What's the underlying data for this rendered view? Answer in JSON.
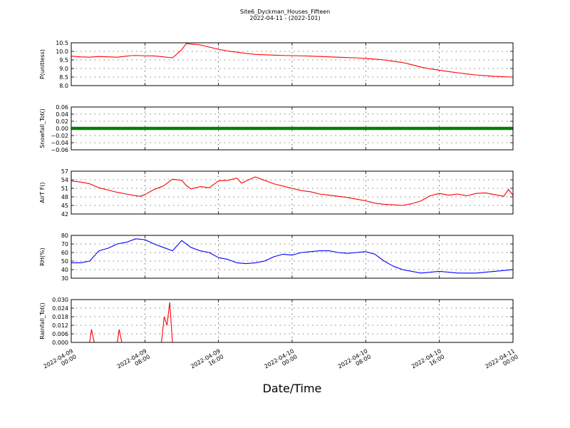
{
  "chart_data": {
    "type": "line",
    "title": "Site6_Dyckman_Houses_Fifteen",
    "subtitle": "2022-04-11 - (2022-101)",
    "xlabel": "Date/Time",
    "x_ticks": [
      {
        "line1": "2022-04-09",
        "line2": "00:00"
      },
      {
        "line1": "2022-04-09",
        "line2": "08:00"
      },
      {
        "line1": "2022-04-09",
        "line2": "16:00"
      },
      {
        "line1": "2022-04-10",
        "line2": "00:00"
      },
      {
        "line1": "2022-04-10",
        "line2": "08:00"
      },
      {
        "line1": "2022-04-10",
        "line2": "16:00"
      },
      {
        "line1": "2022-04-11",
        "line2": "00:00"
      }
    ],
    "x_range_hours": [
      0,
      48
    ],
    "grid": true,
    "panels": [
      {
        "ylabel": "P(unitless)",
        "ylim": [
          8.0,
          10.5
        ],
        "yticks": [
          "8.0",
          "8.5",
          "9.0",
          "9.5",
          "10.0",
          "10.5"
        ],
        "ytick_values": [
          8.0,
          8.5,
          9.0,
          9.5,
          10.0,
          10.5
        ],
        "color": "#ff0000",
        "marker": false,
        "points": [
          [
            0,
            9.72
          ],
          [
            1,
            9.68
          ],
          [
            2,
            9.66
          ],
          [
            3,
            9.7
          ],
          [
            4,
            9.68
          ],
          [
            5,
            9.66
          ],
          [
            6,
            9.72
          ],
          [
            6.5,
            9.75
          ],
          [
            7,
            9.76
          ],
          [
            8,
            9.74
          ],
          [
            9,
            9.73
          ],
          [
            10,
            9.68
          ],
          [
            11,
            9.62
          ],
          [
            12,
            10.1
          ],
          [
            12.5,
            10.45
          ],
          [
            13,
            10.43
          ],
          [
            14,
            10.38
          ],
          [
            15,
            10.25
          ],
          [
            16,
            10.12
          ],
          [
            17,
            10.02
          ],
          [
            18,
            9.95
          ],
          [
            19,
            9.88
          ],
          [
            20,
            9.82
          ],
          [
            21,
            9.8
          ],
          [
            22,
            9.78
          ],
          [
            23,
            9.76
          ],
          [
            24,
            9.75
          ],
          [
            25,
            9.74
          ],
          [
            26,
            9.72
          ],
          [
            27,
            9.7
          ],
          [
            28,
            9.68
          ],
          [
            29,
            9.66
          ],
          [
            30,
            9.64
          ],
          [
            31,
            9.62
          ],
          [
            32,
            9.58
          ],
          [
            33,
            9.55
          ],
          [
            34,
            9.5
          ],
          [
            35,
            9.42
          ],
          [
            36,
            9.35
          ],
          [
            37,
            9.22
          ],
          [
            38,
            9.08
          ],
          [
            39,
            8.98
          ],
          [
            40,
            8.9
          ],
          [
            41,
            8.82
          ],
          [
            42,
            8.75
          ],
          [
            43,
            8.68
          ],
          [
            44,
            8.62
          ],
          [
            45,
            8.58
          ],
          [
            46,
            8.54
          ],
          [
            47,
            8.52
          ],
          [
            48,
            8.5
          ]
        ]
      },
      {
        "ylabel": "Snowfall_Tot()",
        "ylim": [
          -0.06,
          0.06
        ],
        "yticks": [
          "−0.06",
          "−0.04",
          "−0.02",
          "0.00",
          "0.02",
          "0.04",
          "0.06"
        ],
        "ytick_values": [
          -0.06,
          -0.04,
          -0.02,
          0.0,
          0.02,
          0.04,
          0.06
        ],
        "color": "#008000",
        "marker": true,
        "constant_value": 0.0
      },
      {
        "ylabel": "AirT F()",
        "ylim": [
          42,
          57
        ],
        "yticks": [
          "42",
          "45",
          "48",
          "51",
          "54",
          "57"
        ],
        "ytick_values": [
          42,
          45,
          48,
          51,
          54,
          57
        ],
        "color": "#ff0000",
        "marker": false,
        "points": [
          [
            0,
            53.6
          ],
          [
            1,
            53.2
          ],
          [
            2,
            52.6
          ],
          [
            3,
            51.2
          ],
          [
            4,
            50.4
          ],
          [
            5,
            49.6
          ],
          [
            6,
            49.0
          ],
          [
            7,
            48.4
          ],
          [
            7.5,
            48.2
          ],
          [
            8,
            48.8
          ],
          [
            9,
            50.6
          ],
          [
            10,
            51.8
          ],
          [
            11,
            54.2
          ],
          [
            12,
            53.8
          ],
          [
            12.5,
            52.0
          ],
          [
            13,
            50.8
          ],
          [
            14,
            51.6
          ],
          [
            15,
            51.2
          ],
          [
            16,
            53.6
          ],
          [
            17,
            53.8
          ],
          [
            18,
            54.6
          ],
          [
            18.5,
            52.8
          ],
          [
            19,
            53.6
          ],
          [
            20,
            55.0
          ],
          [
            21,
            53.8
          ],
          [
            22,
            52.6
          ],
          [
            23,
            51.8
          ],
          [
            24,
            51.0
          ],
          [
            25,
            50.2
          ],
          [
            26,
            49.8
          ],
          [
            27,
            49.0
          ],
          [
            28,
            48.6
          ],
          [
            29,
            48.2
          ],
          [
            30,
            47.8
          ],
          [
            31,
            47.2
          ],
          [
            32,
            46.6
          ],
          [
            33,
            45.8
          ],
          [
            34,
            45.4
          ],
          [
            35,
            45.2
          ],
          [
            36,
            45.0
          ],
          [
            37,
            45.6
          ],
          [
            38,
            46.6
          ],
          [
            39,
            48.4
          ],
          [
            40,
            49.2
          ],
          [
            41,
            48.6
          ],
          [
            42,
            49.0
          ],
          [
            43,
            48.4
          ],
          [
            44,
            49.2
          ],
          [
            45,
            49.4
          ],
          [
            46,
            48.8
          ],
          [
            47,
            48.2
          ],
          [
            47.5,
            50.6
          ],
          [
            48,
            48.6
          ]
        ]
      },
      {
        "ylabel": "RH(%)",
        "ylim": [
          30,
          80
        ],
        "yticks": [
          "30",
          "40",
          "50",
          "60",
          "70",
          "80"
        ],
        "ytick_values": [
          30,
          40,
          50,
          60,
          70,
          80
        ],
        "color": "#0000ff",
        "marker": false,
        "points": [
          [
            0,
            48
          ],
          [
            1,
            48
          ],
          [
            2,
            50
          ],
          [
            3,
            62
          ],
          [
            4,
            65
          ],
          [
            5,
            70
          ],
          [
            6,
            72
          ],
          [
            7,
            76
          ],
          [
            8,
            75
          ],
          [
            9,
            70
          ],
          [
            10,
            66
          ],
          [
            11,
            62
          ],
          [
            12,
            74
          ],
          [
            13,
            66
          ],
          [
            14,
            62
          ],
          [
            15,
            60
          ],
          [
            16,
            54
          ],
          [
            17,
            52
          ],
          [
            18,
            48
          ],
          [
            19,
            47
          ],
          [
            20,
            48
          ],
          [
            21,
            50
          ],
          [
            22,
            55
          ],
          [
            23,
            58
          ],
          [
            24,
            57
          ],
          [
            25,
            60
          ],
          [
            26,
            61
          ],
          [
            27,
            62
          ],
          [
            28,
            62
          ],
          [
            29,
            60
          ],
          [
            30,
            59
          ],
          [
            31,
            60
          ],
          [
            32,
            61
          ],
          [
            33,
            58
          ],
          [
            34,
            50
          ],
          [
            35,
            44
          ],
          [
            36,
            40
          ],
          [
            37,
            38
          ],
          [
            38,
            36
          ],
          [
            39,
            37
          ],
          [
            40,
            38
          ],
          [
            41,
            37
          ],
          [
            42,
            36
          ],
          [
            43,
            36
          ],
          [
            44,
            36
          ],
          [
            45,
            37
          ],
          [
            46,
            38
          ],
          [
            47,
            39
          ],
          [
            48,
            40
          ]
        ]
      },
      {
        "ylabel": "Rainfall_Tot()",
        "ylim": [
          0.0,
          0.03
        ],
        "yticks": [
          "0.000",
          "0.006",
          "0.012",
          "0.018",
          "0.024",
          "0.030"
        ],
        "ytick_values": [
          0.0,
          0.006,
          0.012,
          0.018,
          0.024,
          0.03
        ],
        "color": "#ff0000",
        "marker": false,
        "points": [
          [
            0,
            0
          ],
          [
            2.0,
            0
          ],
          [
            2.2,
            0.009
          ],
          [
            2.5,
            0
          ],
          [
            5.0,
            0
          ],
          [
            5.2,
            0.009
          ],
          [
            5.5,
            0
          ],
          [
            9.8,
            0
          ],
          [
            10.1,
            0.018
          ],
          [
            10.4,
            0.012
          ],
          [
            10.7,
            0.028
          ],
          [
            11.0,
            0
          ],
          [
            48,
            0
          ]
        ]
      }
    ]
  }
}
